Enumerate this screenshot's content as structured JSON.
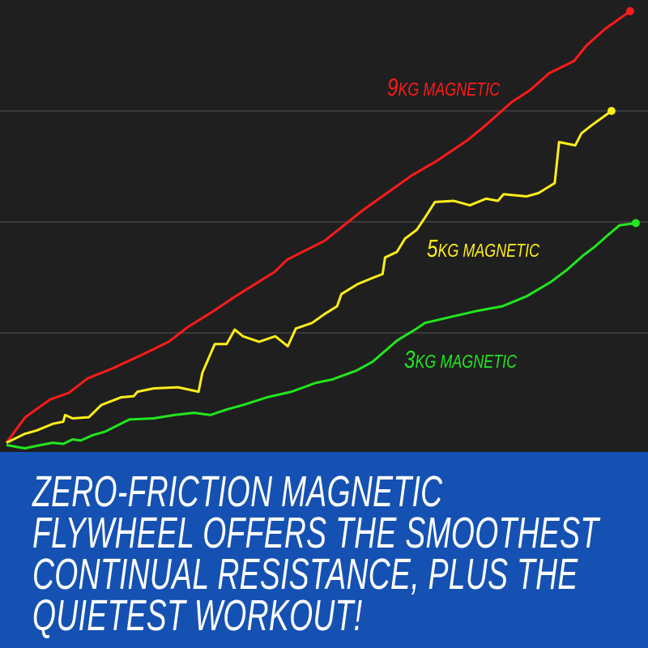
{
  "chart_data": {
    "type": "line",
    "title": "",
    "xlabel": "",
    "ylabel": "",
    "grid": true,
    "xlim": [
      0,
      100
    ],
    "ylim": [
      0,
      4
    ],
    "gridlines_y": [
      1,
      2,
      3
    ],
    "series": [
      {
        "name": "9KG MAGNETIC",
        "label_number": "9",
        "label_text": "KG MAGNETIC",
        "color": "#ff1a1a",
        "x": [
          0,
          3,
          7,
          10,
          13,
          17,
          22,
          26,
          29,
          33,
          37,
          43,
          45,
          51,
          57,
          61,
          65,
          69,
          74,
          77,
          81,
          84,
          87,
          91,
          93,
          96,
          100
        ],
        "y": [
          0.01,
          0.24,
          0.4,
          0.46,
          0.59,
          0.68,
          0.81,
          0.92,
          1.05,
          1.19,
          1.34,
          1.55,
          1.66,
          1.83,
          2.1,
          2.26,
          2.42,
          2.55,
          2.74,
          2.88,
          3.08,
          3.19,
          3.34,
          3.45,
          3.59,
          3.74,
          3.9
        ]
      },
      {
        "name": "5KG MAGNETIC",
        "label_number": "5",
        "label_text": "KG MAGNETIC",
        "color": "#ffee1a",
        "x": [
          0,
          2.9,
          4.8,
          7.4,
          9.1,
          9.4,
          10.6,
          13.2,
          15.2,
          18.4,
          20.4,
          21,
          23.6,
          27.5,
          30.8,
          31.4,
          33.4,
          35.3,
          36.6,
          37.9,
          40.5,
          43.1,
          45.1,
          46.4,
          49,
          51,
          53,
          53.7,
          56.3,
          58.9,
          60.3,
          60.7,
          62.6,
          63.9,
          65.8,
          67.1,
          68.7,
          71.7,
          74.3,
          76.9,
          78.8,
          79.7,
          83.4,
          85.3,
          87.9,
          88.6,
          91.2,
          92.2,
          93.8,
          97
        ],
        "y": [
          0.01,
          0.09,
          0.12,
          0.18,
          0.2,
          0.26,
          0.23,
          0.24,
          0.35,
          0.42,
          0.43,
          0.47,
          0.5,
          0.51,
          0.47,
          0.64,
          0.9,
          0.9,
          1.03,
          0.97,
          0.92,
          0.97,
          0.88,
          1.04,
          1.09,
          1.17,
          1.24,
          1.35,
          1.44,
          1.5,
          1.53,
          1.68,
          1.73,
          1.85,
          1.93,
          2.04,
          2.18,
          2.19,
          2.15,
          2.21,
          2.19,
          2.25,
          2.23,
          2.26,
          2.35,
          2.72,
          2.69,
          2.8,
          2.87,
          3.0
        ]
      },
      {
        "name": "3KG MAGNETIC",
        "label_number": "3",
        "label_text": "KG MAGNETIC",
        "color": "#22e61e",
        "x": [
          0,
          2.9,
          5.5,
          7.4,
          9.1,
          10.6,
          11.9,
          13.9,
          15.8,
          19.7,
          23.6,
          26.9,
          30.1,
          32.7,
          35.3,
          37.9,
          41.8,
          45.7,
          49.6,
          52.2,
          56.1,
          58.7,
          62.6,
          65.8,
          67.1,
          71.7,
          75.6,
          79.5,
          83.4,
          87.3,
          89.9,
          92.5,
          94.4,
          96.4,
          98.3,
          100.9
        ],
        "y": [
          -0.01,
          -0.04,
          -0.01,
          0.01,
          0,
          0.04,
          0.03,
          0.08,
          0.11,
          0.22,
          0.23,
          0.26,
          0.28,
          0.26,
          0.31,
          0.35,
          0.42,
          0.47,
          0.55,
          0.58,
          0.66,
          0.74,
          0.93,
          1.04,
          1.09,
          1.15,
          1.2,
          1.24,
          1.33,
          1.46,
          1.57,
          1.7,
          1.78,
          1.88,
          1.97,
          1.99
        ]
      }
    ]
  },
  "banner": {
    "color": "#1551b2",
    "lines": [
      "ZERO-FRICTION MAGNETIC",
      "FLYWHEEL OFFERS THE SMOOTHEST",
      "CONTINUAL RESISTANCE, PLUS THE",
      "QUIETEST WORKOUT!"
    ]
  }
}
